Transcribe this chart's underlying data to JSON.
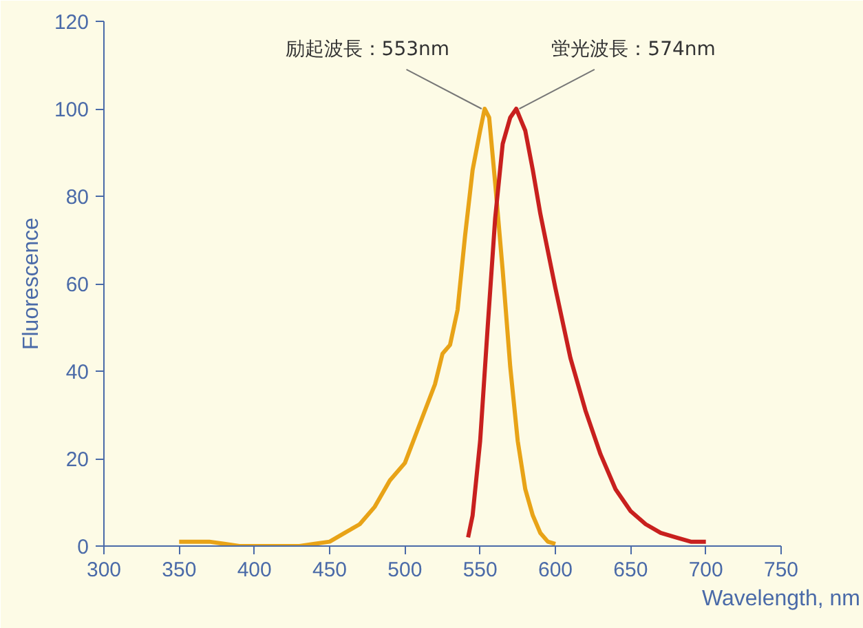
{
  "chart_data": {
    "type": "line",
    "xlabel": "Wavelength, nm",
    "ylabel": "Fluorescence",
    "xlim": [
      300,
      750
    ],
    "ylim": [
      0,
      120
    ],
    "xticks": [
      300,
      350,
      400,
      450,
      500,
      550,
      600,
      650,
      700,
      750
    ],
    "yticks": [
      0,
      20,
      40,
      60,
      80,
      100,
      120
    ],
    "grid": false,
    "marker": "none",
    "line_style": "solid",
    "series": [
      {
        "color": "#e8a317",
        "x": [
          350,
          360,
          370,
          380,
          390,
          400,
          410,
          420,
          430,
          440,
          450,
          460,
          470,
          480,
          490,
          500,
          510,
          520,
          525,
          530,
          535,
          540,
          545,
          550,
          553,
          556,
          560,
          565,
          570,
          575,
          580,
          585,
          590,
          595,
          600
        ],
        "values": [
          1,
          1,
          1,
          0.5,
          0,
          0,
          0,
          0,
          0,
          0.5,
          1,
          3,
          5,
          9,
          15,
          19,
          28,
          37,
          44,
          46,
          54,
          71,
          86,
          95,
          100,
          98,
          83,
          63,
          41,
          24,
          13,
          7,
          3,
          1,
          0.5
        ]
      },
      {
        "color": "#c8201e",
        "x": [
          542,
          545,
          550,
          555,
          560,
          565,
          570,
          574,
          580,
          585,
          590,
          600,
          610,
          620,
          630,
          640,
          650,
          660,
          670,
          680,
          690,
          700
        ],
        "values": [
          2,
          7,
          24,
          50,
          75,
          92,
          98,
          100,
          95,
          86,
          76,
          59,
          43,
          31,
          21,
          13,
          8,
          5,
          3,
          2,
          1,
          1
        ]
      }
    ],
    "annotations": [
      {
        "text": "励起波長：553nm",
        "x": 553,
        "y": 100
      },
      {
        "text": "蛍光波長：574nm",
        "x": 574,
        "y": 100
      }
    ]
  }
}
